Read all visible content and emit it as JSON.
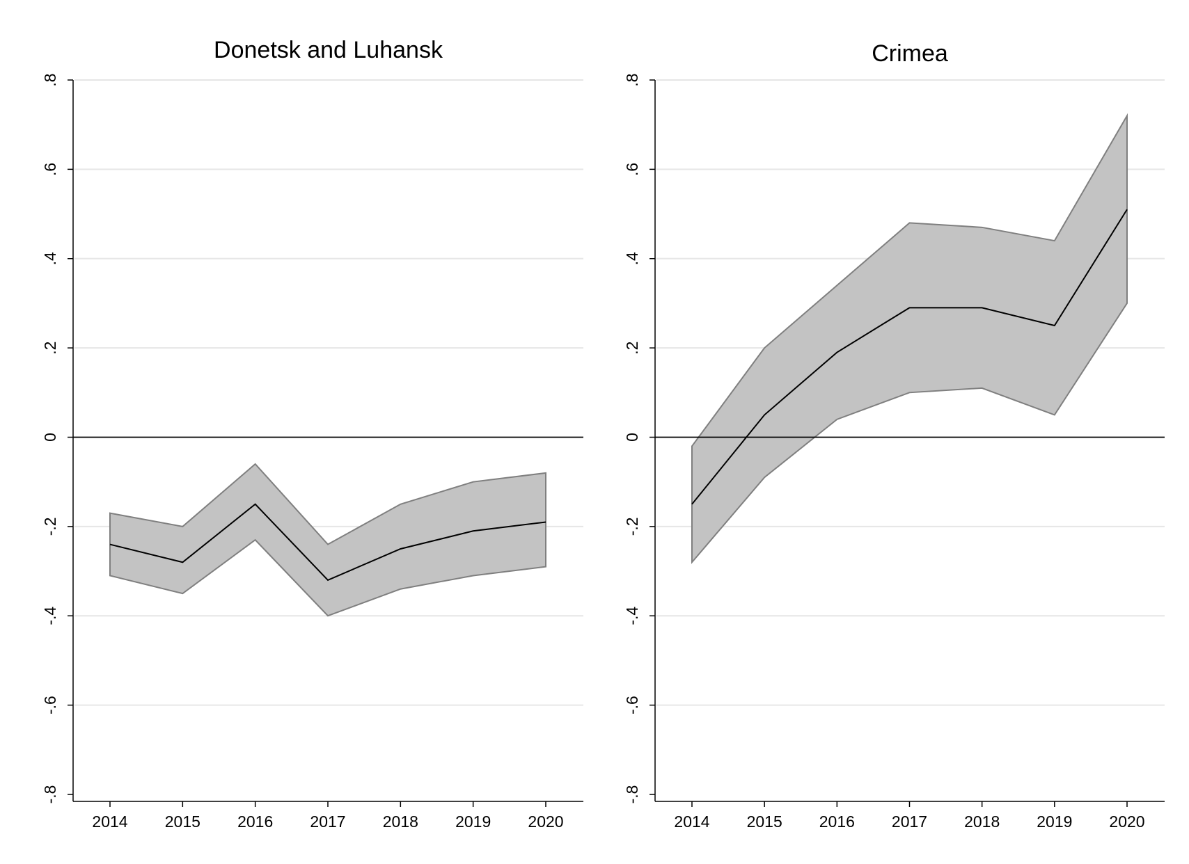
{
  "chart_data": [
    {
      "type": "area",
      "title": "Donetsk and Luhansk",
      "xlabel": "",
      "ylabel": "",
      "x": [
        2014,
        2015,
        2016,
        2017,
        2018,
        2019,
        2020
      ],
      "xticks": [
        "2014",
        "2015",
        "2016",
        "2017",
        "2018",
        "2019",
        "2020"
      ],
      "yticks": [
        -0.8,
        -0.6,
        -0.4,
        -0.2,
        0,
        0.2,
        0.4,
        0.6,
        0.8
      ],
      "ytick_labels": [
        "-.8",
        "-.6",
        "-.4",
        "-.2",
        "0",
        ".2",
        ".4",
        ".6",
        ".8"
      ],
      "ylim": [
        -0.8,
        0.8
      ],
      "grid": true,
      "reference_line": 0,
      "series": [
        {
          "role": "estimate",
          "values": [
            -0.24,
            -0.28,
            -0.15,
            -0.32,
            -0.25,
            -0.21,
            -0.19
          ]
        },
        {
          "role": "upper",
          "values": [
            -0.17,
            -0.2,
            -0.06,
            -0.24,
            -0.15,
            -0.1,
            -0.08
          ]
        },
        {
          "role": "lower",
          "values": [
            -0.31,
            -0.35,
            -0.23,
            -0.4,
            -0.34,
            -0.31,
            -0.29
          ]
        }
      ]
    },
    {
      "type": "area",
      "title": "Crimea",
      "xlabel": "",
      "ylabel": "",
      "x": [
        2014,
        2015,
        2016,
        2017,
        2018,
        2019,
        2020
      ],
      "xticks": [
        "2014",
        "2015",
        "2016",
        "2017",
        "2018",
        "2019",
        "2020"
      ],
      "yticks": [
        -0.8,
        -0.6,
        -0.4,
        -0.2,
        0,
        0.2,
        0.4,
        0.6,
        0.8
      ],
      "ytick_labels": [
        "-.8",
        "-.6",
        "-.4",
        "-.2",
        "0",
        ".2",
        ".4",
        ".6",
        ".8"
      ],
      "ylim": [
        -0.8,
        0.8
      ],
      "grid": true,
      "reference_line": 0,
      "series": [
        {
          "role": "estimate",
          "values": [
            -0.15,
            0.05,
            0.19,
            0.29,
            0.29,
            0.25,
            0.51
          ]
        },
        {
          "role": "upper",
          "values": [
            -0.02,
            0.2,
            0.34,
            0.48,
            0.47,
            0.44,
            0.72
          ]
        },
        {
          "role": "lower",
          "values": [
            -0.28,
            -0.09,
            0.04,
            0.1,
            0.11,
            0.05,
            0.3
          ]
        }
      ]
    }
  ],
  "colors": {
    "band_fill": "#c3c3c3",
    "band_edge": "#7f7f7f",
    "estimate_line": "#000000",
    "grid": "#e6e6e6"
  }
}
